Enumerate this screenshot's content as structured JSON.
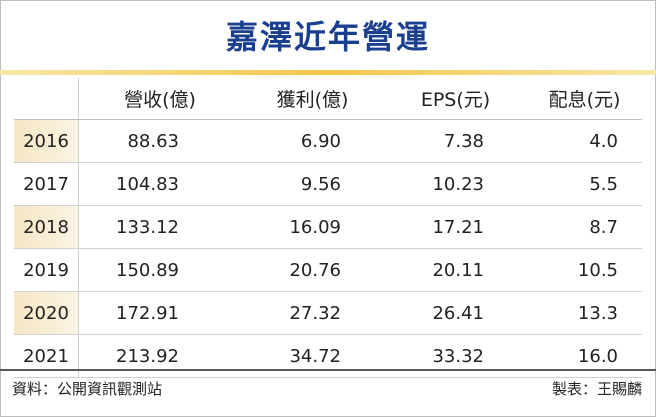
{
  "chart_data": {
    "type": "table",
    "title": "嘉澤近年營運",
    "columns": [
      "",
      "營收(億)",
      "獲利(億)",
      "EPS(元)",
      "配息(元)"
    ],
    "rows": [
      {
        "year": "2016",
        "values": [
          "88.63",
          "6.90",
          "7.38",
          "4.0"
        ]
      },
      {
        "year": "2017",
        "values": [
          "104.83",
          "9.56",
          "10.23",
          "5.5"
        ]
      },
      {
        "year": "2018",
        "values": [
          "133.12",
          "16.09",
          "17.21",
          "8.7"
        ]
      },
      {
        "year": "2019",
        "values": [
          "150.89",
          "20.76",
          "20.11",
          "10.5"
        ]
      },
      {
        "year": "2020",
        "values": [
          "172.91",
          "27.32",
          "26.41",
          "13.3"
        ]
      },
      {
        "year": "2021",
        "values": [
          "213.92",
          "34.72",
          "33.32",
          "16.0"
        ]
      }
    ]
  },
  "footer": {
    "source": "資料：公開資訊觀測站",
    "credit": "製表：王賜麟"
  },
  "colors": {
    "title": "#1b3f8f",
    "accent_rule": "#f3c64a",
    "shaded_year": "#f5e6c4"
  }
}
